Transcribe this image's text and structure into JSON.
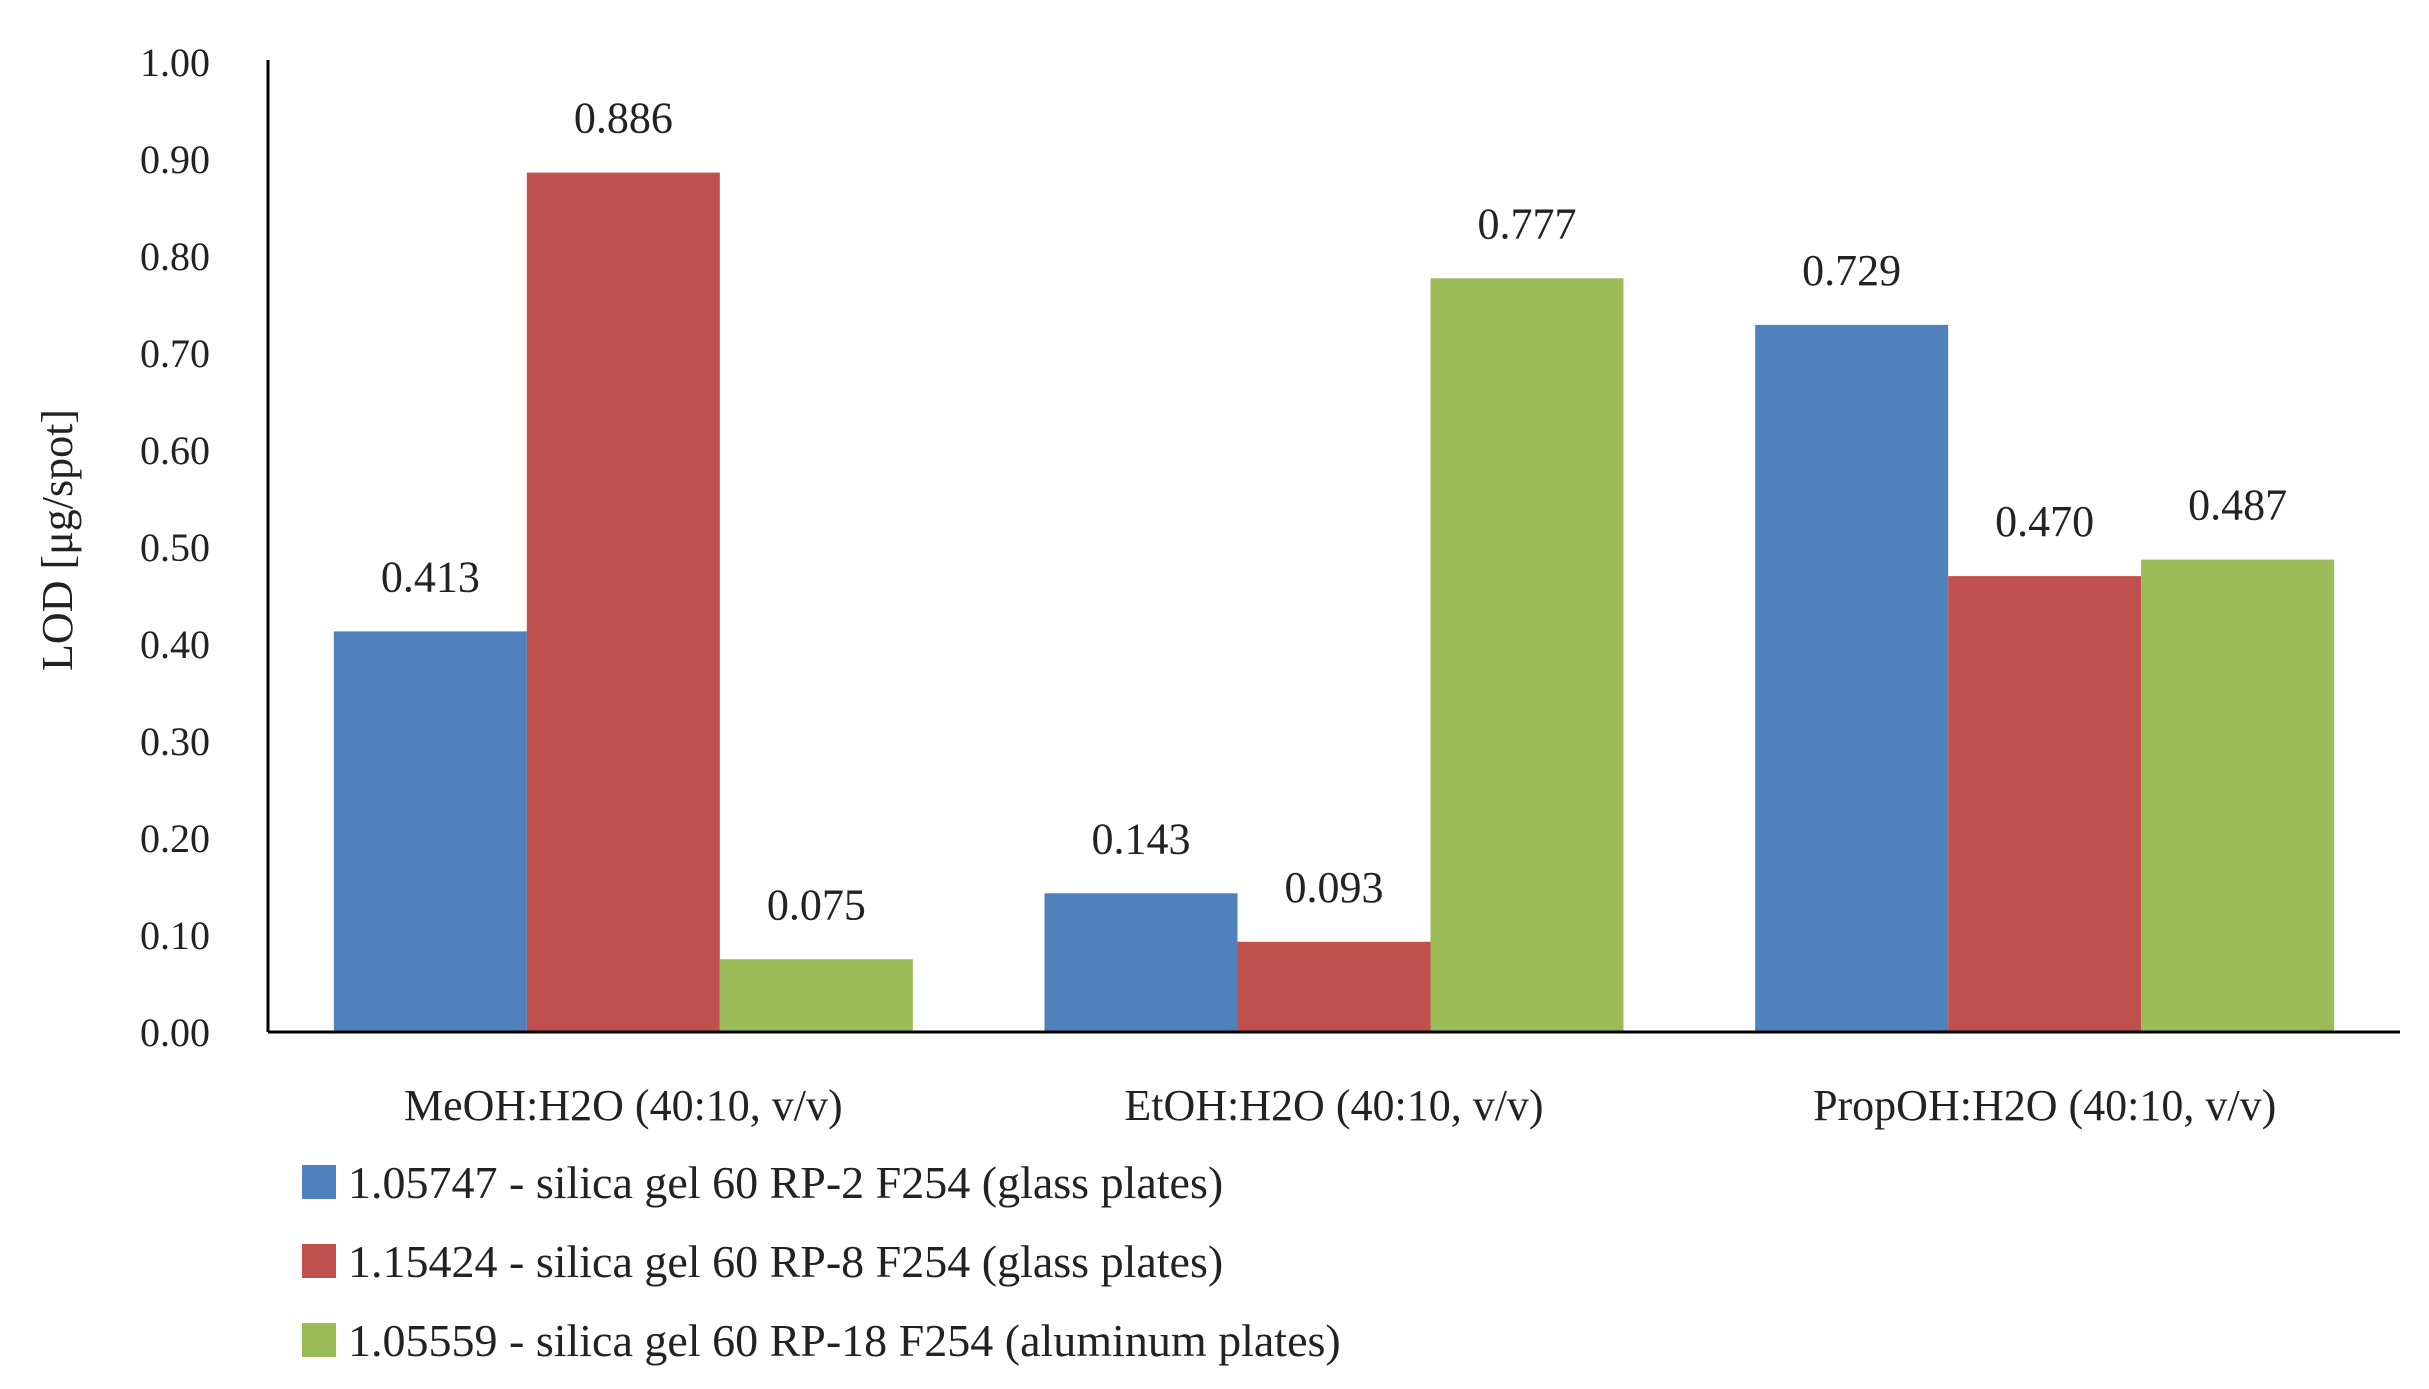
{
  "chart_data": {
    "type": "bar",
    "title": "",
    "xlabel": "",
    "ylabel": "LOD  [μg/spot]",
    "ylim": [
      0,
      1.0
    ],
    "yticks": [
      "0.00",
      "0.10",
      "0.20",
      "0.30",
      "0.40",
      "0.50",
      "0.60",
      "0.70",
      "0.80",
      "0.90",
      "1.00"
    ],
    "grid": false,
    "legend_position": "bottom-left",
    "categories": [
      "MeOH:H2O (40:10, v/v)",
      "EtOH:H2O (40:10, v/v)",
      "PropOH:H2O (40:10, v/v)"
    ],
    "series": [
      {
        "name": "1.05747 - silica gel  60 RP-2 F254 (glass plates)",
        "color": "#4F81BD",
        "values": [
          0.413,
          0.143,
          0.729
        ],
        "labels": [
          "0.413",
          "0.143",
          "0.729"
        ]
      },
      {
        "name": "1.15424 - silica gel  60 RP-8 F254 (glass plates)",
        "color": "#C0504D",
        "values": [
          0.886,
          0.093,
          0.47
        ],
        "labels": [
          "0.886",
          "0.093",
          "0.470"
        ]
      },
      {
        "name": "1.05559 - silica gel  60 RP-18 F254 (aluminum plates)",
        "color": "#9BBB59",
        "values": [
          0.075,
          0.777,
          0.487
        ],
        "labels": [
          "0.075",
          "0.777",
          "0.487"
        ]
      }
    ]
  }
}
